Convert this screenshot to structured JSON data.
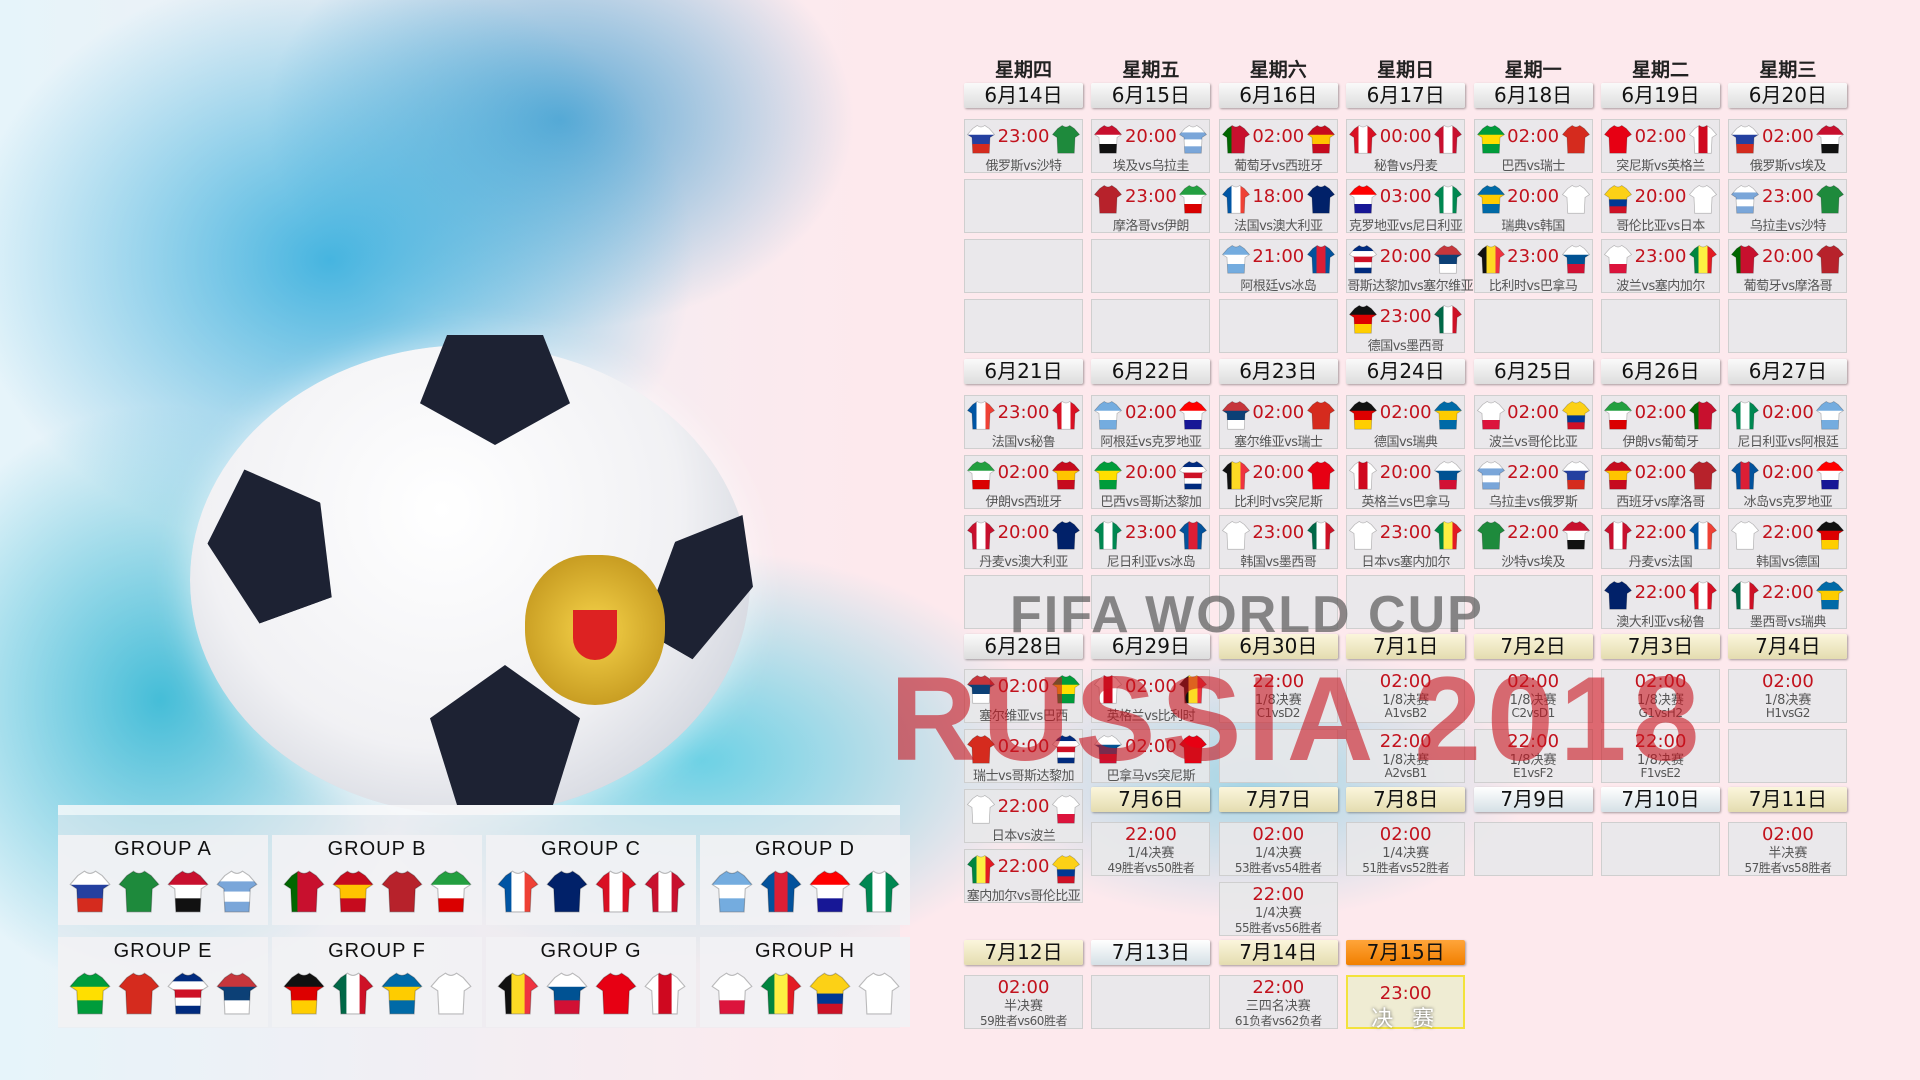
{
  "background": {
    "logo_line1": "FIFA WORLD CUP",
    "logo_line2": "RUSSIA 2018"
  },
  "colors": {
    "time": "#c2121d",
    "final_header": "#f17f00",
    "final_border": "#f3e23c"
  },
  "weekdays": [
    "星期四",
    "星期五",
    "星期六",
    "星期日",
    "星期一",
    "星期二",
    "星期三"
  ],
  "teams": {
    "俄罗斯": {
      "d": "h",
      "c": [
        "#ffffff",
        "#2440a0",
        "#d52b1e"
      ]
    },
    "沙特": {
      "d": "h",
      "c": [
        "#1e8a3c"
      ]
    },
    "埃及": {
      "d": "h",
      "c": [
        "#c8102e",
        "#ffffff",
        "#111111"
      ]
    },
    "乌拉圭": {
      "d": "h",
      "c": [
        "#ffffff",
        "#7aa6d9",
        "#ffffff",
        "#7aa6d9"
      ]
    },
    "摩洛哥": {
      "d": "h",
      "c": [
        "#b7222b"
      ]
    },
    "伊朗": {
      "d": "h",
      "c": [
        "#239f40",
        "#ffffff",
        "#da0000"
      ]
    },
    "葡萄牙": {
      "d": "v",
      "c": [
        "#006600",
        "#c8102e",
        "#c8102e"
      ]
    },
    "西班牙": {
      "d": "h",
      "c": [
        "#c60b1e",
        "#ffc400",
        "#c60b1e"
      ]
    },
    "法国": {
      "d": "v",
      "c": [
        "#0055a4",
        "#ffffff",
        "#ef4135"
      ]
    },
    "澳大利亚": {
      "d": "h",
      "c": [
        "#012169"
      ]
    },
    "阿根廷": {
      "d": "h",
      "c": [
        "#74acdf",
        "#ffffff",
        "#74acdf"
      ]
    },
    "冰岛": {
      "d": "v",
      "c": [
        "#02529c",
        "#dc1e35",
        "#02529c"
      ]
    },
    "秘鲁": {
      "d": "v",
      "c": [
        "#d91023",
        "#ffffff",
        "#d91023"
      ]
    },
    "丹麦": {
      "d": "v",
      "c": [
        "#c8102e",
        "#ffffff",
        "#c8102e"
      ]
    },
    "克罗地亚": {
      "d": "h",
      "c": [
        "#ff0000",
        "#ffffff",
        "#171796"
      ]
    },
    "尼日利亚": {
      "d": "v",
      "c": [
        "#008751",
        "#ffffff",
        "#008751"
      ]
    },
    "哥斯达黎加": {
      "d": "h",
      "c": [
        "#002b7f",
        "#ffffff",
        "#ce1126",
        "#ffffff",
        "#002b7f"
      ]
    },
    "塞尔维亚": {
      "d": "h",
      "c": [
        "#c6363c",
        "#0c4076",
        "#ffffff"
      ]
    },
    "德国": {
      "d": "h",
      "c": [
        "#111111",
        "#dd0000",
        "#ffce00"
      ]
    },
    "墨西哥": {
      "d": "v",
      "c": [
        "#006847",
        "#ffffff",
        "#ce1126"
      ]
    },
    "巴西": {
      "d": "h",
      "c": [
        "#009c3b",
        "#ffdf00",
        "#009c3b"
      ]
    },
    "瑞士": {
      "d": "h",
      "c": [
        "#d52b1e"
      ]
    },
    "瑞典": {
      "d": "h",
      "c": [
        "#006aa7",
        "#fecc00",
        "#006aa7"
      ]
    },
    "韩国": {
      "d": "h",
      "c": [
        "#ffffff"
      ]
    },
    "比利时": {
      "d": "v",
      "c": [
        "#111111",
        "#fdda24",
        "#ef3340"
      ]
    },
    "巴拿马": {
      "d": "h",
      "c": [
        "#ffffff",
        "#005293",
        "#d21034"
      ]
    },
    "突尼斯": {
      "d": "h",
      "c": [
        "#e70013"
      ]
    },
    "英格兰": {
      "d": "v",
      "c": [
        "#ffffff",
        "#cf081f",
        "#ffffff"
      ]
    },
    "哥伦比亚": {
      "d": "h",
      "c": [
        "#fcd116",
        "#fcd116",
        "#003893",
        "#ce1126"
      ]
    },
    "日本": {
      "d": "h",
      "c": [
        "#ffffff"
      ]
    },
    "波兰": {
      "d": "h",
      "c": [
        "#ffffff",
        "#ffffff",
        "#dc143c"
      ]
    },
    "塞内加尔": {
      "d": "v",
      "c": [
        "#00853f",
        "#fdef42",
        "#e31b23"
      ]
    }
  },
  "weeks": [
    {
      "days": [
        {
          "date": "6月14日",
          "style": "normal",
          "matches": [
            {
              "home": "俄罗斯",
              "away": "沙特",
              "time": "23:00",
              "label": "俄罗斯vs沙特"
            }
          ]
        },
        {
          "date": "6月15日",
          "style": "normal",
          "matches": [
            {
              "home": "埃及",
              "away": "乌拉圭",
              "time": "20:00",
              "label": "埃及vs乌拉圭"
            },
            {
              "home": "摩洛哥",
              "away": "伊朗",
              "time": "23:00",
              "label": "摩洛哥vs伊朗"
            }
          ]
        },
        {
          "date": "6月16日",
          "style": "normal",
          "matches": [
            {
              "home": "葡萄牙",
              "away": "西班牙",
              "time": "02:00",
              "label": "葡萄牙vs西班牙"
            },
            {
              "home": "法国",
              "away": "澳大利亚",
              "time": "18:00",
              "label": "法国vs澳大利亚"
            },
            {
              "home": "阿根廷",
              "away": "冰岛",
              "time": "21:00",
              "label": "阿根廷vs冰岛"
            }
          ]
        },
        {
          "date": "6月17日",
          "style": "normal",
          "matches": [
            {
              "home": "秘鲁",
              "away": "丹麦",
              "time": "00:00",
              "label": "秘鲁vs丹麦"
            },
            {
              "home": "克罗地亚",
              "away": "尼日利亚",
              "time": "03:00",
              "label": "克罗地亚vs尼日利亚"
            },
            {
              "home": "哥斯达黎加",
              "away": "塞尔维亚",
              "time": "20:00",
              "label": "哥斯达黎加vs塞尔维亚"
            },
            {
              "home": "德国",
              "away": "墨西哥",
              "time": "23:00",
              "label": "德国vs墨西哥"
            }
          ]
        },
        {
          "date": "6月18日",
          "style": "normal",
          "matches": [
            {
              "home": "巴西",
              "away": "瑞士",
              "time": "02:00",
              "label": "巴西vs瑞士"
            },
            {
              "home": "瑞典",
              "away": "韩国",
              "time": "20:00",
              "label": "瑞典vs韩国"
            },
            {
              "home": "比利时",
              "away": "巴拿马",
              "time": "23:00",
              "label": "比利时vs巴拿马"
            }
          ]
        },
        {
          "date": "6月19日",
          "style": "normal",
          "matches": [
            {
              "home": "突尼斯",
              "away": "英格兰",
              "time": "02:00",
              "label": "突尼斯vs英格兰"
            },
            {
              "home": "哥伦比亚",
              "away": "日本",
              "time": "20:00",
              "label": "哥伦比亚vs日本"
            },
            {
              "home": "波兰",
              "away": "塞内加尔",
              "time": "23:00",
              "label": "波兰vs塞内加尔"
            }
          ]
        },
        {
          "date": "6月20日",
          "style": "normal",
          "matches": [
            {
              "home": "俄罗斯",
              "away": "埃及",
              "time": "02:00",
              "label": "俄罗斯vs埃及"
            },
            {
              "home": "乌拉圭",
              "away": "沙特",
              "time": "23:00",
              "label": "乌拉圭vs沙特"
            },
            {
              "home": "葡萄牙",
              "away": "摩洛哥",
              "time": "20:00",
              "label": "葡萄牙vs摩洛哥"
            }
          ]
        }
      ]
    },
    {
      "days": [
        {
          "date": "6月21日",
          "style": "normal",
          "matches": [
            {
              "home": "法国",
              "away": "秘鲁",
              "time": "23:00",
              "label": "法国vs秘鲁"
            },
            {
              "home": "伊朗",
              "away": "西班牙",
              "time": "02:00",
              "label": "伊朗vs西班牙"
            },
            {
              "home": "丹麦",
              "away": "澳大利亚",
              "time": "20:00",
              "label": "丹麦vs澳大利亚"
            }
          ]
        },
        {
          "date": "6月22日",
          "style": "normal",
          "matches": [
            {
              "home": "阿根廷",
              "away": "克罗地亚",
              "time": "02:00",
              "label": "阿根廷vs克罗地亚"
            },
            {
              "home": "巴西",
              "away": "哥斯达黎加",
              "time": "20:00",
              "label": "巴西vs哥斯达黎加"
            },
            {
              "home": "尼日利亚",
              "away": "冰岛",
              "time": "23:00",
              "label": "尼日利亚vs冰岛"
            }
          ]
        },
        {
          "date": "6月23日",
          "style": "normal",
          "matches": [
            {
              "home": "塞尔维亚",
              "away": "瑞士",
              "time": "02:00",
              "label": "塞尔维亚vs瑞士"
            },
            {
              "home": "比利时",
              "away": "突尼斯",
              "time": "20:00",
              "label": "比利时vs突尼斯"
            },
            {
              "home": "韩国",
              "away": "墨西哥",
              "time": "23:00",
              "label": "韩国vs墨西哥"
            }
          ]
        },
        {
          "date": "6月24日",
          "style": "normal",
          "matches": [
            {
              "home": "德国",
              "away": "瑞典",
              "time": "02:00",
              "label": "德国vs瑞典"
            },
            {
              "home": "英格兰",
              "away": "巴拿马",
              "time": "20:00",
              "label": "英格兰vs巴拿马"
            },
            {
              "home": "日本",
              "away": "塞内加尔",
              "time": "23:00",
              "label": "日本vs塞内加尔"
            }
          ]
        },
        {
          "date": "6月25日",
          "style": "normal",
          "matches": [
            {
              "home": "波兰",
              "away": "哥伦比亚",
              "time": "02:00",
              "label": "波兰vs哥伦比亚"
            },
            {
              "home": "乌拉圭",
              "away": "俄罗斯",
              "time": "22:00",
              "label": "乌拉圭vs俄罗斯"
            },
            {
              "home": "沙特",
              "away": "埃及",
              "time": "22:00",
              "label": "沙特vs埃及"
            }
          ]
        },
        {
          "date": "6月26日",
          "style": "normal",
          "matches": [
            {
              "home": "伊朗",
              "away": "葡萄牙",
              "time": "02:00",
              "label": "伊朗vs葡萄牙"
            },
            {
              "home": "西班牙",
              "away": "摩洛哥",
              "time": "02:00",
              "label": "西班牙vs摩洛哥"
            },
            {
              "home": "丹麦",
              "away": "法国",
              "time": "22:00",
              "label": "丹麦vs法国"
            },
            {
              "home": "澳大利亚",
              "away": "秘鲁",
              "time": "22:00",
              "label": "澳大利亚vs秘鲁"
            }
          ]
        },
        {
          "date": "6月27日",
          "style": "normal",
          "matches": [
            {
              "home": "尼日利亚",
              "away": "阿根廷",
              "time": "02:00",
              "label": "尼日利亚vs阿根廷"
            },
            {
              "home": "冰岛",
              "away": "克罗地亚",
              "time": "02:00",
              "label": "冰岛vs克罗地亚"
            },
            {
              "home": "韩国",
              "away": "德国",
              "time": "22:00",
              "label": "韩国vs德国"
            },
            {
              "home": "墨西哥",
              "away": "瑞典",
              "time": "22:00",
              "label": "墨西哥vs瑞典"
            }
          ]
        }
      ]
    },
    {
      "days": [
        {
          "date": "6月28日",
          "style": "normal",
          "matches": [
            {
              "home": "塞尔维亚",
              "away": "巴西",
              "time": "02:00",
              "label": "塞尔维亚vs巴西"
            },
            {
              "home": "瑞士",
              "away": "哥斯达黎加",
              "time": "02:00",
              "label": "瑞士vs哥斯达黎加"
            },
            {
              "home": "日本",
              "away": "波兰",
              "time": "22:00",
              "label": "日本vs波兰"
            },
            {
              "home": "塞内加尔",
              "away": "哥伦比亚",
              "time": "22:00",
              "label": "塞内加尔vs哥伦比亚"
            }
          ]
        },
        {
          "date": "6月29日",
          "style": "normal",
          "matches": [
            {
              "home": "英格兰",
              "away": "比利时",
              "time": "02:00",
              "label": "英格兰vs比利时"
            },
            {
              "home": "巴拿马",
              "away": "突尼斯",
              "time": "02:00",
              "label": "巴拿马vs突尼斯"
            }
          ]
        },
        {
          "date": "6月30日",
          "style": "knockout",
          "matches": [
            {
              "time": "22:00",
              "stage": "1/8决赛",
              "label": "C1vsD2"
            }
          ]
        },
        {
          "date": "7月1日",
          "style": "knockout",
          "matches": [
            {
              "time": "02:00",
              "stage": "1/8决赛",
              "label": "A1vsB2"
            },
            {
              "time": "22:00",
              "stage": "1/8决赛",
              "label": "A2vsB1"
            }
          ]
        },
        {
          "date": "7月2日",
          "style": "knockout",
          "matches": [
            {
              "time": "02:00",
              "stage": "1/8决赛",
              "label": "C2vsD1"
            },
            {
              "time": "22:00",
              "stage": "1/8决赛",
              "label": "E1vsF2"
            }
          ]
        },
        {
          "date": "7月3日",
          "style": "knockout",
          "matches": [
            {
              "time": "02:00",
              "stage": "1/8决赛",
              "label": "G1vsH2"
            },
            {
              "time": "22:00",
              "stage": "1/8决赛",
              "label": "F1vsE2"
            }
          ]
        },
        {
          "date": "7月4日",
          "style": "knockout",
          "matches": [
            {
              "time": "02:00",
              "stage": "1/8决赛",
              "label": "H1vsG2"
            }
          ]
        }
      ]
    },
    {
      "days": [
        {
          "date": "7月6日",
          "style": "knockout",
          "matches": [
            {
              "time": "22:00",
              "stage": "1/4决赛",
              "label": "49胜者vs50胜者"
            }
          ]
        },
        {
          "date": "7月7日",
          "style": "knockout",
          "matches": [
            {
              "time": "02:00",
              "stage": "1/4决赛",
              "label": "53胜者vs54胜者"
            },
            {
              "time": "22:00",
              "stage": "1/4决赛",
              "label": "55胜者vs56胜者"
            }
          ]
        },
        {
          "date": "7月8日",
          "style": "knockout",
          "matches": [
            {
              "time": "02:00",
              "stage": "1/4决赛",
              "label": "51胜者vs52胜者"
            }
          ]
        },
        {
          "date": "7月9日",
          "style": "rest",
          "matches": []
        },
        {
          "date": "7月10日",
          "style": "rest",
          "matches": []
        },
        {
          "date": "7月11日",
          "style": "knockout",
          "matches": [
            {
              "time": "02:00",
              "stage": "半决赛",
              "label": "57胜者vs58胜者"
            }
          ]
        }
      ]
    },
    {
      "days": [
        {
          "date": "7月12日",
          "style": "knockout",
          "matches": [
            {
              "time": "02:00",
              "stage": "半决赛",
              "label": "59胜者vs60胜者"
            }
          ]
        },
        {
          "date": "7月13日",
          "style": "rest",
          "matches": []
        },
        {
          "date": "7月14日",
          "style": "knockout",
          "matches": [
            {
              "time": "22:00",
              "stage": "三四名决赛",
              "label": "61负者vs62负者"
            }
          ]
        },
        {
          "date": "7月15日",
          "style": "final",
          "matches": [
            {
              "time": "23:00",
              "final": "决 赛"
            }
          ]
        }
      ]
    }
  ],
  "groups": [
    {
      "name": "GROUP A",
      "teams": [
        "俄罗斯",
        "沙特",
        "埃及",
        "乌拉圭"
      ]
    },
    {
      "name": "GROUP B",
      "teams": [
        "葡萄牙",
        "西班牙",
        "摩洛哥",
        "伊朗"
      ]
    },
    {
      "name": "GROUP C",
      "teams": [
        "法国",
        "澳大利亚",
        "秘鲁",
        "丹麦"
      ]
    },
    {
      "name": "GROUP D",
      "teams": [
        "阿根廷",
        "冰岛",
        "克罗地亚",
        "尼日利亚"
      ]
    },
    {
      "name": "GROUP E",
      "teams": [
        "巴西",
        "瑞士",
        "哥斯达黎加",
        "塞尔维亚"
      ]
    },
    {
      "name": "GROUP F",
      "teams": [
        "德国",
        "墨西哥",
        "瑞典",
        "韩国"
      ]
    },
    {
      "name": "GROUP G",
      "teams": [
        "比利时",
        "巴拿马",
        "突尼斯",
        "英格兰"
      ]
    },
    {
      "name": "GROUP H",
      "teams": [
        "波兰",
        "塞内加尔",
        "哥伦比亚",
        "日本"
      ]
    }
  ]
}
